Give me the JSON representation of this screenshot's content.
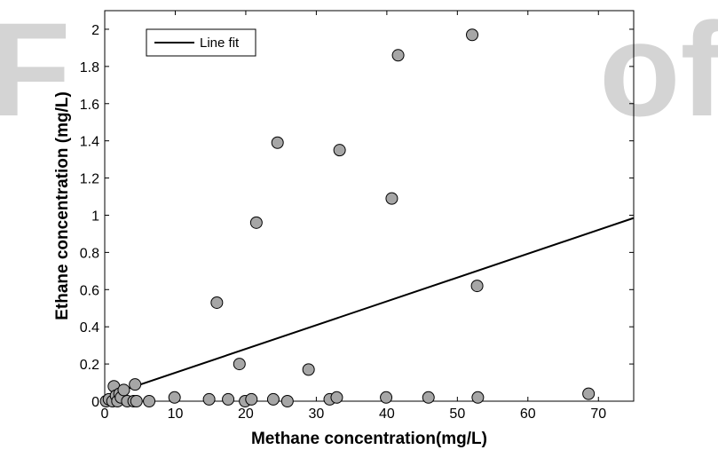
{
  "watermark": {
    "left_text": "F",
    "right_text": "of"
  },
  "chart_data": {
    "type": "scatter",
    "title": "",
    "xlabel": "Methane concentration(mg/L)",
    "ylabel": "Ethane concentration (mg/L)",
    "xlim": [
      0,
      75
    ],
    "ylim": [
      0,
      2.1
    ],
    "xticks": [
      0,
      10,
      20,
      30,
      40,
      50,
      60,
      70
    ],
    "yticks": [
      0,
      0.2,
      0.4,
      0.6,
      0.8,
      1,
      1.2,
      1.4,
      1.6,
      1.8,
      2
    ],
    "xtick_labels": [
      "0",
      "10",
      "20",
      "30",
      "40",
      "50",
      "60",
      "70"
    ],
    "ytick_labels": [
      "0",
      "0.2",
      "0.4",
      "0.6",
      "0.8",
      "1",
      "1.2",
      "1.4",
      "1.6",
      "1.8",
      "2"
    ],
    "grid": false,
    "legend": {
      "position": "top-left",
      "entries": [
        "Line fit"
      ]
    },
    "series": [
      {
        "kind": "points",
        "marker_color": "#a6a6a6",
        "edge_color": "#000000",
        "points": [
          [
            0.2,
            0.0
          ],
          [
            0.6,
            0.01
          ],
          [
            1.1,
            0.0
          ],
          [
            1.3,
            0.08
          ],
          [
            1.6,
            0.03
          ],
          [
            1.8,
            0.0
          ],
          [
            2.1,
            0.04
          ],
          [
            2.3,
            0.02
          ],
          [
            2.7,
            0.06
          ],
          [
            3.2,
            0.0
          ],
          [
            4.1,
            0.0
          ],
          [
            4.3,
            0.09
          ],
          [
            4.5,
            0.0
          ],
          [
            6.3,
            0.0
          ],
          [
            9.9,
            0.02
          ],
          [
            14.8,
            0.01
          ],
          [
            15.9,
            0.53
          ],
          [
            17.5,
            0.01
          ],
          [
            19.1,
            0.2
          ],
          [
            19.9,
            0.0
          ],
          [
            20.8,
            0.01
          ],
          [
            21.5,
            0.96
          ],
          [
            23.9,
            0.01
          ],
          [
            24.5,
            1.39
          ],
          [
            25.9,
            0.0
          ],
          [
            28.9,
            0.17
          ],
          [
            31.9,
            0.01
          ],
          [
            32.9,
            0.02
          ],
          [
            33.3,
            1.35
          ],
          [
            39.9,
            0.02
          ],
          [
            40.7,
            1.09
          ],
          [
            41.6,
            1.86
          ],
          [
            45.9,
            0.02
          ],
          [
            52.1,
            1.97
          ],
          [
            52.8,
            0.62
          ],
          [
            52.9,
            0.02
          ],
          [
            68.6,
            0.04
          ]
        ]
      },
      {
        "name": "Line fit",
        "kind": "line",
        "color": "#000000",
        "points": [
          [
            0,
            0.025
          ],
          [
            75,
            0.985
          ]
        ]
      }
    ]
  }
}
